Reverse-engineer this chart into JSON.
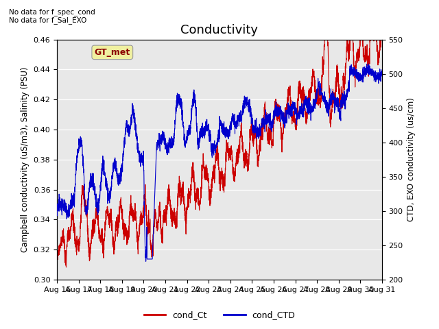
{
  "title": "Conductivity",
  "ylabel_left": "Campbell conductivity (uS/m3), Salinity (PSU)",
  "ylabel_right": "CTD, EXO conductivity (us/cm)",
  "ylim_left": [
    0.3,
    0.46
  ],
  "ylim_right": [
    200,
    550
  ],
  "yticks_left": [
    0.3,
    0.32,
    0.34,
    0.36,
    0.38,
    0.4,
    0.42,
    0.44,
    0.46
  ],
  "yticks_right": [
    200,
    250,
    300,
    350,
    400,
    450,
    500,
    550
  ],
  "xtick_labels": [
    "Aug 16",
    "Aug 17",
    "Aug 18",
    "Aug 19",
    "Aug 20",
    "Aug 21",
    "Aug 22",
    "Aug 23",
    "Aug 24",
    "Aug 25",
    "Aug 26",
    "Aug 27",
    "Aug 28",
    "Aug 29",
    "Aug 30",
    "Aug 31"
  ],
  "annotation1": "No data for f_spec_cond",
  "annotation2": "No data for f_Sal_EXO",
  "gt_met_label": "GT_met",
  "legend_entries": [
    "cond_Ct",
    "cond_CTD"
  ],
  "line_colors": [
    "#cc0000",
    "#0000cc"
  ],
  "bg_color": "#e8e8e8",
  "title_fontsize": 13,
  "label_fontsize": 8.5,
  "tick_fontsize": 8,
  "annot_fontsize": 7.5
}
